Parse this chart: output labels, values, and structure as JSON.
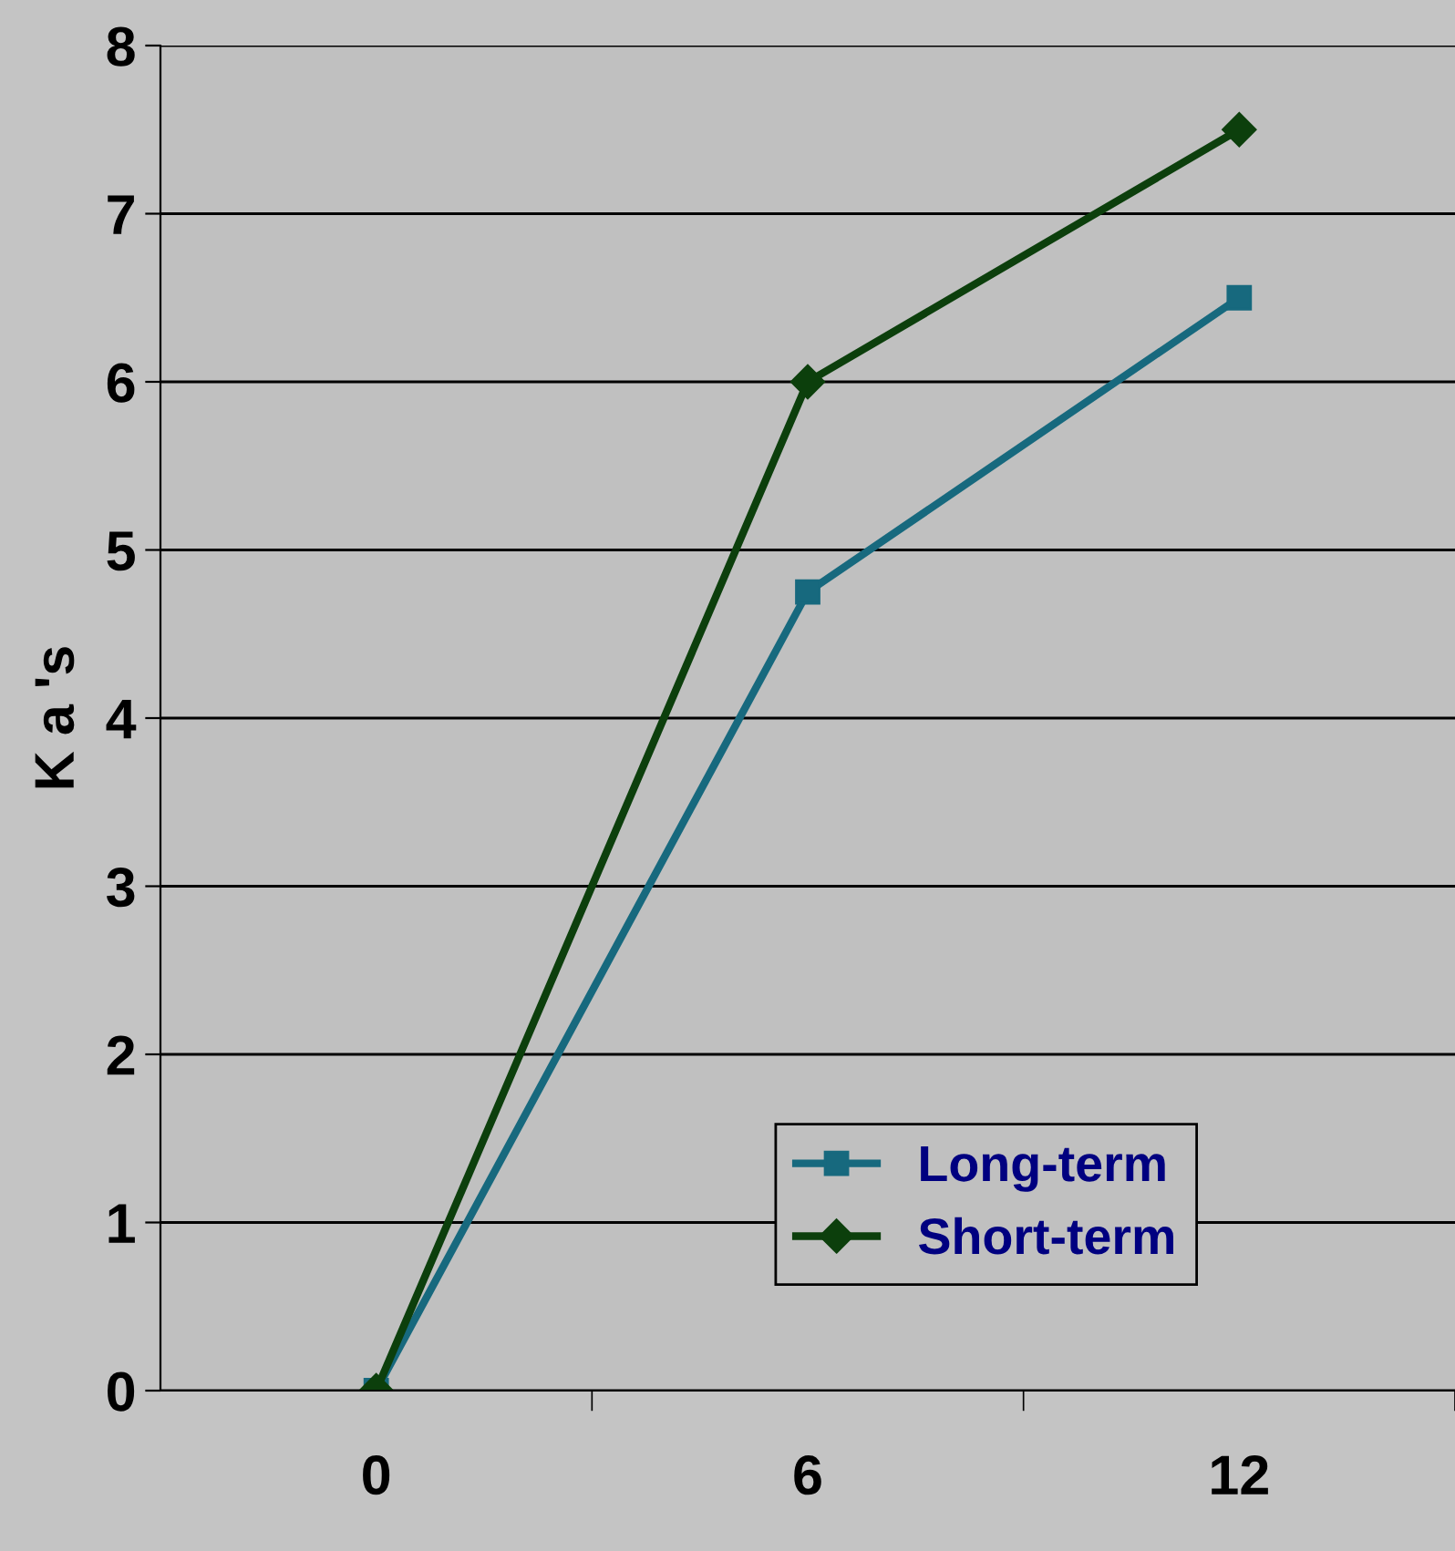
{
  "chart_data": {
    "type": "line",
    "ylabel": "K a 's",
    "categories": [
      "0",
      "6",
      "12"
    ],
    "series": [
      {
        "name": "Long-term",
        "color": "#17697e",
        "values": [
          0,
          4.75,
          6.5
        ],
        "marker": "square"
      },
      {
        "name": "Short-term",
        "color": "#0c3f0c",
        "values": [
          0,
          6,
          7.5
        ],
        "marker": "diamond"
      }
    ],
    "ylim": [
      0,
      8
    ],
    "yticks": [
      0,
      1,
      2,
      3,
      4,
      5,
      6,
      7,
      8
    ],
    "grid": "y",
    "legend": "bottom right"
  }
}
